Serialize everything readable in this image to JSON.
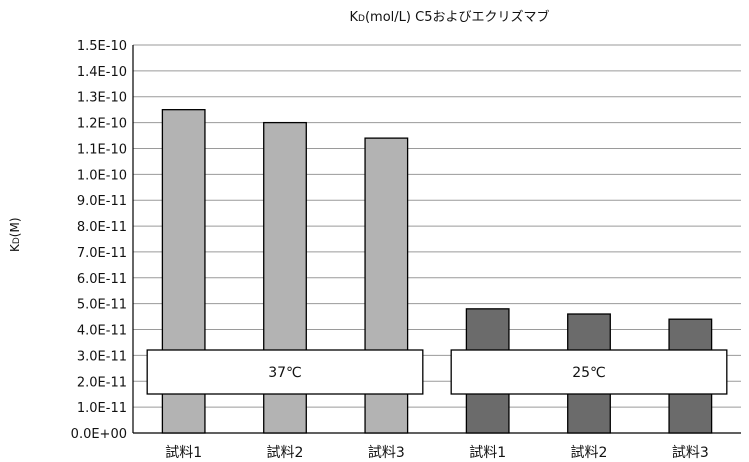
{
  "chart_data": {
    "type": "bar",
    "title": "K",
    "title_subscript": "D",
    "title_rest": "(mol/L) C5およびエクリズマブ",
    "ylabel": "K",
    "ylabel_subscript": "D",
    "ylabel_rest": "(M)",
    "ylim": [
      0,
      1.5e-10
    ],
    "y_ticks": [
      "0.0E+00",
      "1.0E-11",
      "2.0E-11",
      "3.0E-11",
      "4.0E-11",
      "5.0E-11",
      "6.0E-11",
      "7.0E-11",
      "8.0E-11",
      "9.0E-11",
      "1.0E-10",
      "1.1E-10",
      "1.2E-10",
      "1.3E-10",
      "1.4E-10",
      "1.5E-10"
    ],
    "grid": true,
    "categories": [
      "試料1",
      "試料2",
      "試料3",
      "試料1",
      "試料2",
      "試料3"
    ],
    "values": [
      1.25e-10,
      1.2e-10,
      1.14e-10,
      4.8e-11,
      4.6e-11,
      4.4e-11
    ],
    "bar_colors": [
      "#b3b3b3",
      "#b3b3b3",
      "#b3b3b3",
      "#6b6b6b",
      "#6b6b6b",
      "#6b6b6b"
    ],
    "groups": [
      {
        "label": "37℃",
        "categories": [
          0,
          1,
          2
        ]
      },
      {
        "label": "25℃",
        "categories": [
          3,
          4,
          5
        ]
      }
    ]
  }
}
